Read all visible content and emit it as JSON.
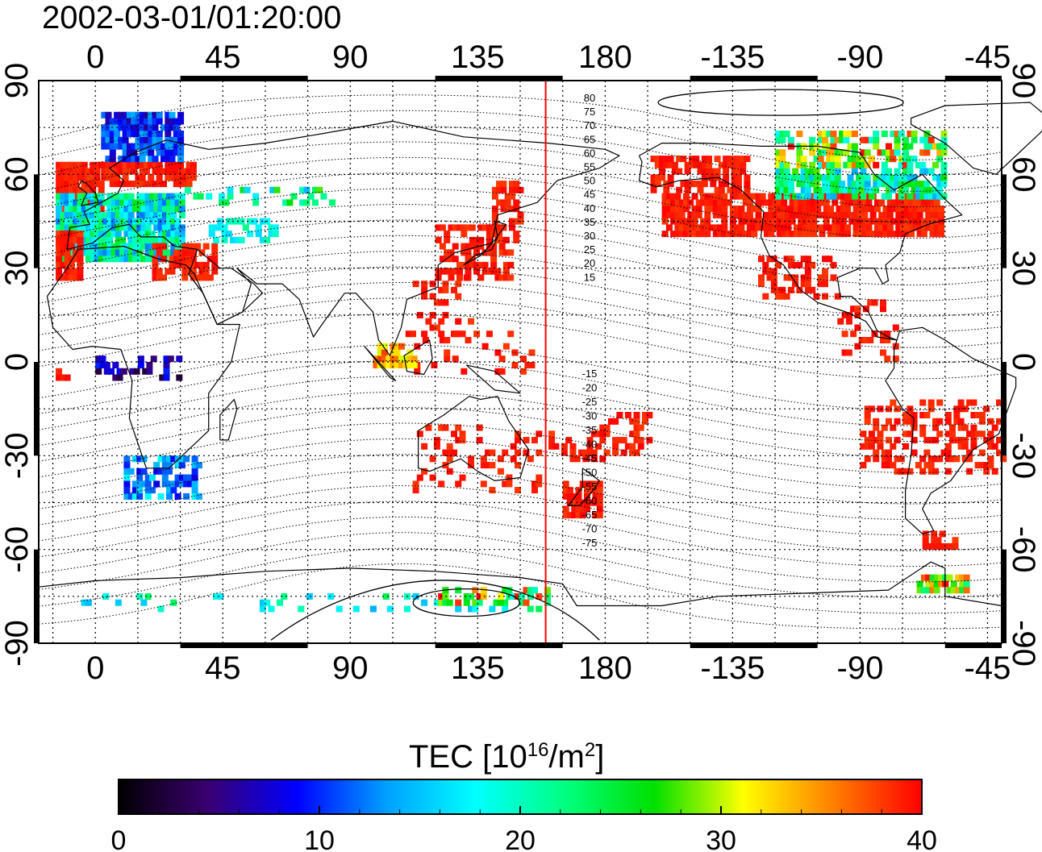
{
  "title": "2002-03-01/01:20:00",
  "map": {
    "projection": "equirectangular",
    "lon_range_display": [
      -20,
      320
    ],
    "lat_range": [
      -90,
      90
    ],
    "top_lon_labels": [
      "0",
      "45",
      "90",
      "135",
      "180",
      "-135",
      "-90",
      "-45"
    ],
    "bottom_lon_labels": [
      "0",
      "45",
      "90",
      "135",
      "180",
      "-135",
      "-90",
      "-45"
    ],
    "left_lat_labels": [
      "90",
      "60",
      "30",
      "0",
      "-30",
      "-60",
      "-90"
    ],
    "right_lat_labels": [
      "90",
      "60",
      "30",
      "0",
      "-30",
      "-60",
      "-90"
    ],
    "grid": "dotted, 15 degree spacing",
    "terminator_longitude": 159,
    "terminator_color": "#ff0000",
    "contour_labels_north": [
      "80",
      "75",
      "70",
      "65",
      "60",
      "55",
      "50",
      "45",
      "40",
      "35",
      "30",
      "25",
      "20",
      "15"
    ],
    "contour_labels_south": [
      "-15",
      "-20",
      "-25",
      "-30",
      "-35",
      "-40",
      "-45",
      "-50",
      "-55",
      "-60",
      "-65",
      "-70",
      "-75"
    ]
  },
  "colorbar": {
    "label_main": "TEC  [10",
    "label_sup1": "16",
    "label_mid": "/m",
    "label_sup2": "2",
    "label_end": "]",
    "min": 0,
    "max": 40,
    "tick_labels": [
      "0",
      "10",
      "20",
      "30",
      "40"
    ],
    "colormap": [
      "#000000",
      "#3a0070",
      "#0000ff",
      "#00a0ff",
      "#00ffff",
      "#00ff80",
      "#00e000",
      "#ffff00",
      "#ff8000",
      "#ff0000"
    ]
  }
}
